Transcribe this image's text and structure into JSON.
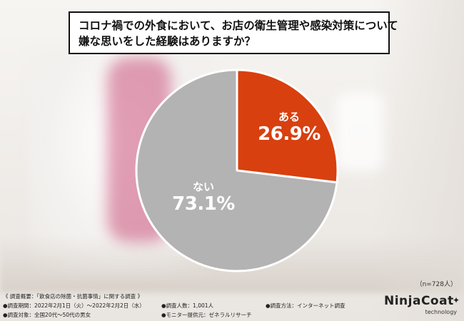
{
  "title": {
    "lines": [
      "コロナ禍での外食において、お店の衛生管理や感染対策について",
      "嫌な思いをした経験はありますか？"
    ]
  },
  "chart_data": {
    "type": "pie",
    "slices": [
      {
        "label": "ある",
        "value": 26.9,
        "display": "26.9%",
        "color": "#d8400f"
      },
      {
        "label": "ない",
        "value": 73.1,
        "display": "73.1%",
        "color": "#b3b3b3"
      }
    ],
    "start": "12 o'clock",
    "direction": "clockwise",
    "legend": "none"
  },
  "sample_size": "（n=728人）",
  "survey": {
    "overview": "《 調査概要：「飲食店の除菌・抗菌事情」に関する調査 》",
    "period": "●調査期間：2022年2月1日（火）～2022年2月2日（水）",
    "count": "●調査人数：1,001人",
    "method": "●調査方法：インターネット調査",
    "target": "●調査対象：全国20代～50代の男女",
    "provider": "●モニター提供元：ゼネラルリサーチ"
  },
  "logo": {
    "main": "NinjaCoat",
    "sub": "technology",
    "icon": "star-icon"
  }
}
